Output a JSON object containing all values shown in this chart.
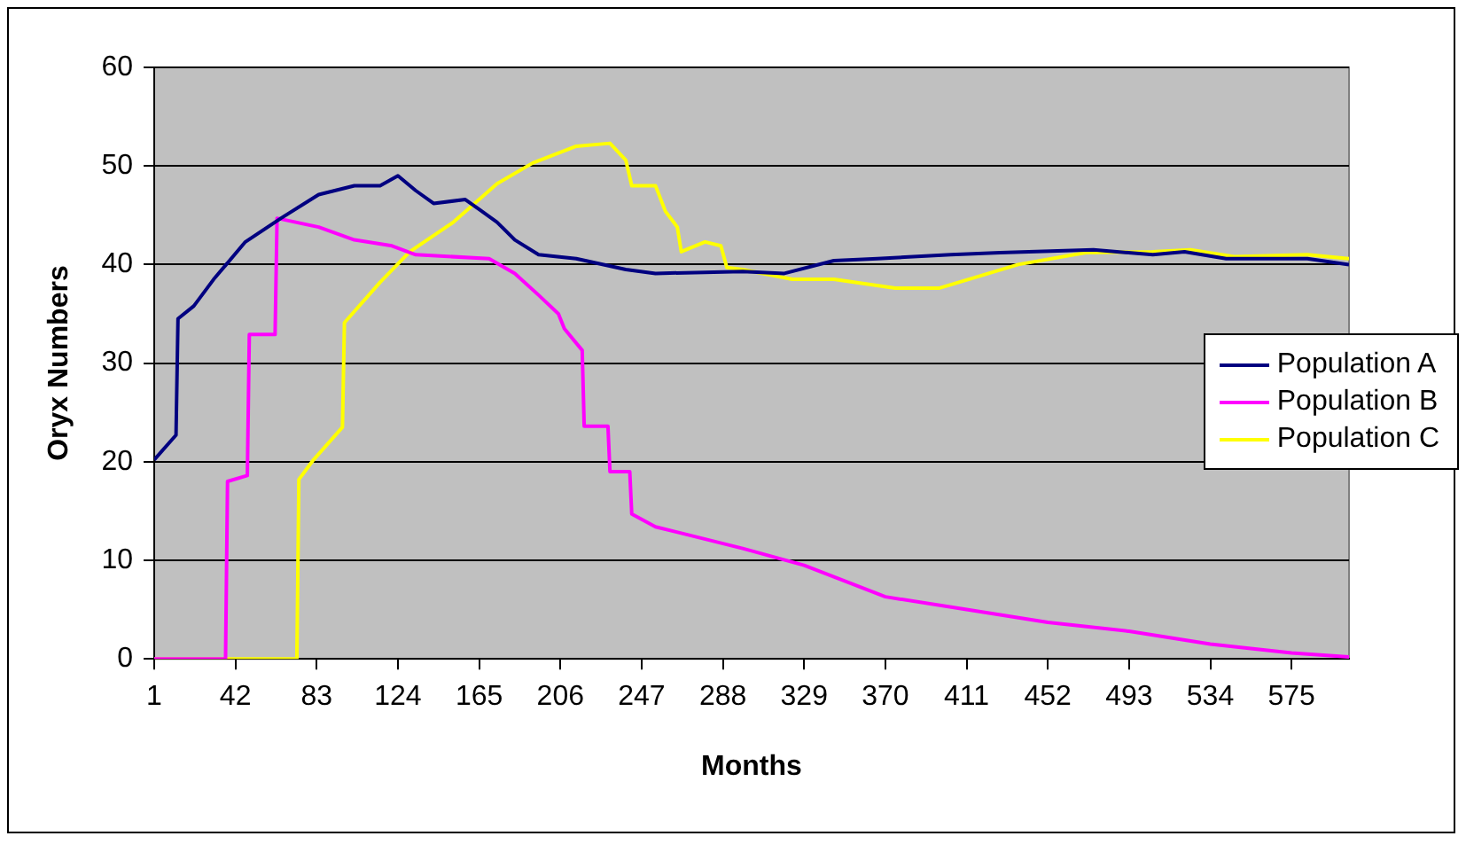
{
  "chart_data": {
    "type": "line",
    "xlabel": "Months",
    "ylabel": "Oryx Numbers",
    "xlim": [
      1,
      604
    ],
    "xticks": [
      1,
      42,
      83,
      124,
      165,
      206,
      247,
      288,
      329,
      370,
      411,
      452,
      493,
      534,
      575
    ],
    "ylim": [
      0,
      60
    ],
    "yticks": [
      0,
      10,
      20,
      30,
      40,
      50,
      60
    ],
    "grid": "y",
    "legend": "right",
    "marker": "none",
    "line_style": "solid",
    "series": [
      {
        "name": "Population A",
        "color": "#000080",
        "x": [
          1,
          12,
          13,
          21,
          31,
          47,
          65,
          84,
          102,
          115,
          124,
          133,
          142,
          158,
          165,
          174,
          183,
          195,
          214,
          239,
          254,
          298,
          319,
          344,
          366,
          403,
          428,
          475,
          505,
          521,
          542,
          583,
          604
        ],
        "values": [
          20.2,
          22.7,
          34.5,
          35.8,
          38.5,
          42.3,
          44.7,
          47.1,
          48.0,
          48.0,
          49.0,
          47.5,
          46.2,
          46.6,
          45.6,
          44.3,
          42.5,
          41.0,
          40.6,
          39.5,
          39.1,
          39.3,
          39.1,
          40.4,
          40.6,
          41.0,
          41.2,
          41.5,
          41.0,
          41.3,
          40.6,
          40.6,
          40.0
        ]
      },
      {
        "name": "Population B",
        "color": "#ff00ff",
        "x": [
          1,
          37,
          38,
          48,
          49,
          62,
          63,
          84,
          102,
          121,
          133,
          170,
          183,
          195,
          205,
          208,
          217,
          218,
          230,
          231,
          241,
          242,
          254,
          298,
          329,
          370,
          411,
          452,
          493,
          534,
          575,
          604
        ],
        "values": [
          0,
          0,
          18.0,
          18.6,
          32.9,
          32.9,
          44.7,
          43.8,
          42.5,
          41.9,
          41.0,
          40.6,
          39.1,
          36.9,
          35.0,
          33.5,
          31.3,
          23.6,
          23.6,
          19.0,
          19.0,
          14.7,
          13.4,
          11.2,
          9.5,
          6.3,
          5.0,
          3.7,
          2.8,
          1.5,
          0.6,
          0.2
        ]
      },
      {
        "name": "Population C",
        "color": "#ffff00",
        "x": [
          1,
          73,
          74,
          81,
          96,
          97,
          115,
          130,
          152,
          174,
          192,
          214,
          231,
          239,
          242,
          254,
          259,
          265,
          267,
          279,
          287,
          290,
          298,
          323,
          344,
          375,
          397,
          412,
          437,
          471,
          505,
          524,
          546,
          583,
          604
        ],
        "values": [
          0,
          0,
          18.2,
          20.1,
          23.5,
          34.1,
          38.2,
          41.3,
          44.3,
          48.2,
          50.3,
          52.0,
          52.3,
          50.6,
          48.0,
          48.0,
          45.4,
          43.8,
          41.3,
          42.3,
          41.9,
          39.7,
          39.5,
          38.5,
          38.5,
          37.6,
          37.6,
          38.5,
          40.0,
          41.2,
          41.3,
          41.5,
          40.8,
          41.0,
          40.6
        ]
      }
    ]
  }
}
